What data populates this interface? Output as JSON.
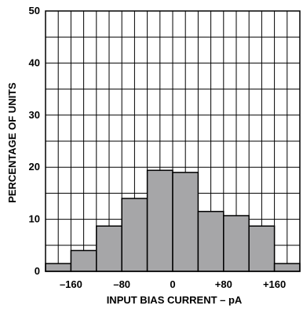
{
  "chart_data": {
    "type": "bar",
    "xlabel": "INPUT BIAS CURRENT – pA",
    "ylabel": "PERCENTAGE OF UNITS",
    "ylim": [
      0,
      50
    ],
    "xlim": [
      -200,
      200
    ],
    "grid": true,
    "bar_color": "#a6a6a8",
    "bin_width": 40,
    "bins": [
      {
        "x": -180,
        "value": 1.5
      },
      {
        "x": -140,
        "value": 4.0
      },
      {
        "x": -100,
        "value": 8.7
      },
      {
        "x": -60,
        "value": 14.0
      },
      {
        "x": -20,
        "value": 19.4
      },
      {
        "x": 20,
        "value": 19.0
      },
      {
        "x": 60,
        "value": 11.5
      },
      {
        "x": 100,
        "value": 10.7
      },
      {
        "x": 140,
        "value": 8.7
      },
      {
        "x": 180,
        "value": 1.5
      }
    ],
    "y_ticks": [
      {
        "value": 0,
        "label": "0"
      },
      {
        "value": 10,
        "label": "10"
      },
      {
        "value": 20,
        "label": "20"
      },
      {
        "value": 30,
        "label": "30"
      },
      {
        "value": 40,
        "label": "40"
      },
      {
        "value": 50,
        "label": "50"
      }
    ],
    "x_ticks": [
      {
        "value": -160,
        "label": "–160"
      },
      {
        "value": -80,
        "label": "–80"
      },
      {
        "value": 0,
        "label": "0"
      },
      {
        "value": 80,
        "label": "+80"
      },
      {
        "value": 160,
        "label": "+160"
      }
    ]
  }
}
